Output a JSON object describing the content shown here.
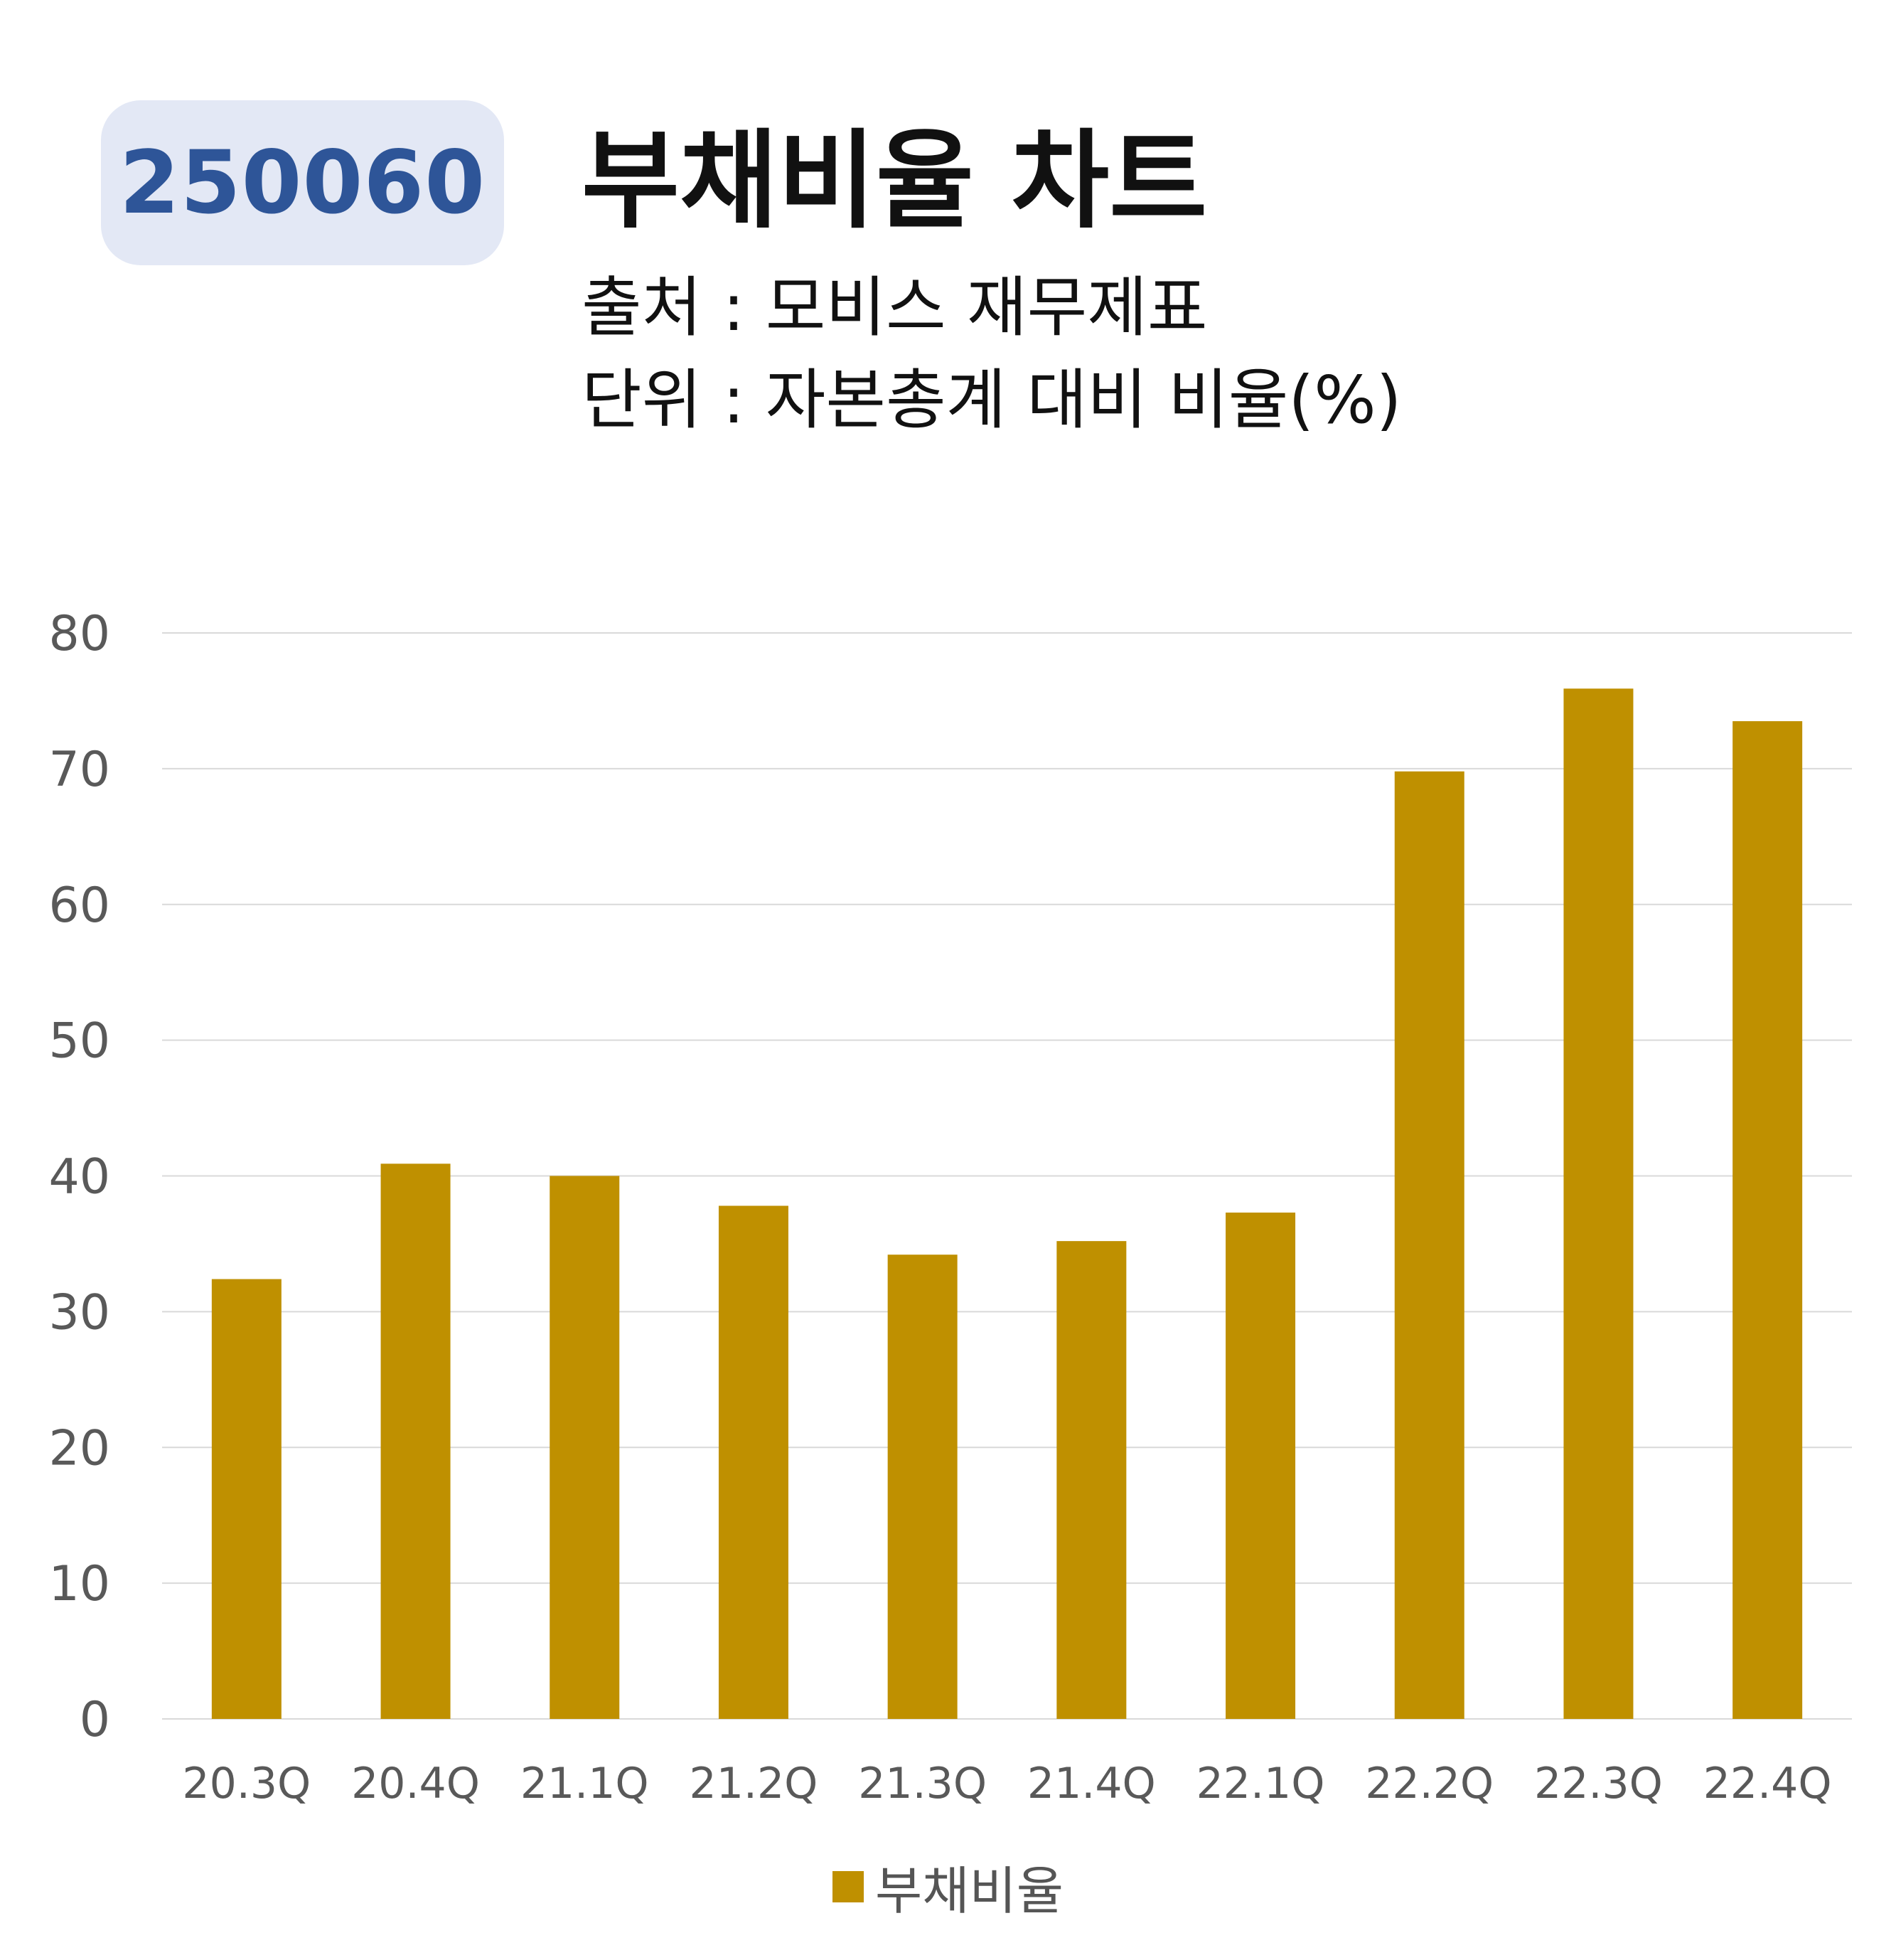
{
  "header": {
    "code": "250060",
    "title": "부채비율 차트",
    "source": "출처 : 모비스 재무제표",
    "unit": "단위 : 자본총계 대비 비율(%)"
  },
  "colors": {
    "bar": "#bf9000",
    "badge_bg": "#e3e8f5",
    "badge_text": "#2e5598",
    "grid": "#d9d9d9",
    "tick_text": "#595959"
  },
  "chart_data": {
    "type": "bar",
    "categories": [
      "20.3Q",
      "20.4Q",
      "21.1Q",
      "21.2Q",
      "21.3Q",
      "21.4Q",
      "22.1Q",
      "22.2Q",
      "22.3Q",
      "22.4Q"
    ],
    "series": [
      {
        "name": "부채비율",
        "values": [
          32.4,
          40.9,
          40.0,
          37.8,
          34.2,
          35.2,
          37.3,
          69.8,
          75.9,
          73.5
        ]
      }
    ],
    "ylim": [
      0,
      80
    ],
    "yticks": [
      0,
      10,
      20,
      30,
      40,
      50,
      60,
      70,
      80
    ],
    "grid": true,
    "legend_position": "bottom"
  }
}
